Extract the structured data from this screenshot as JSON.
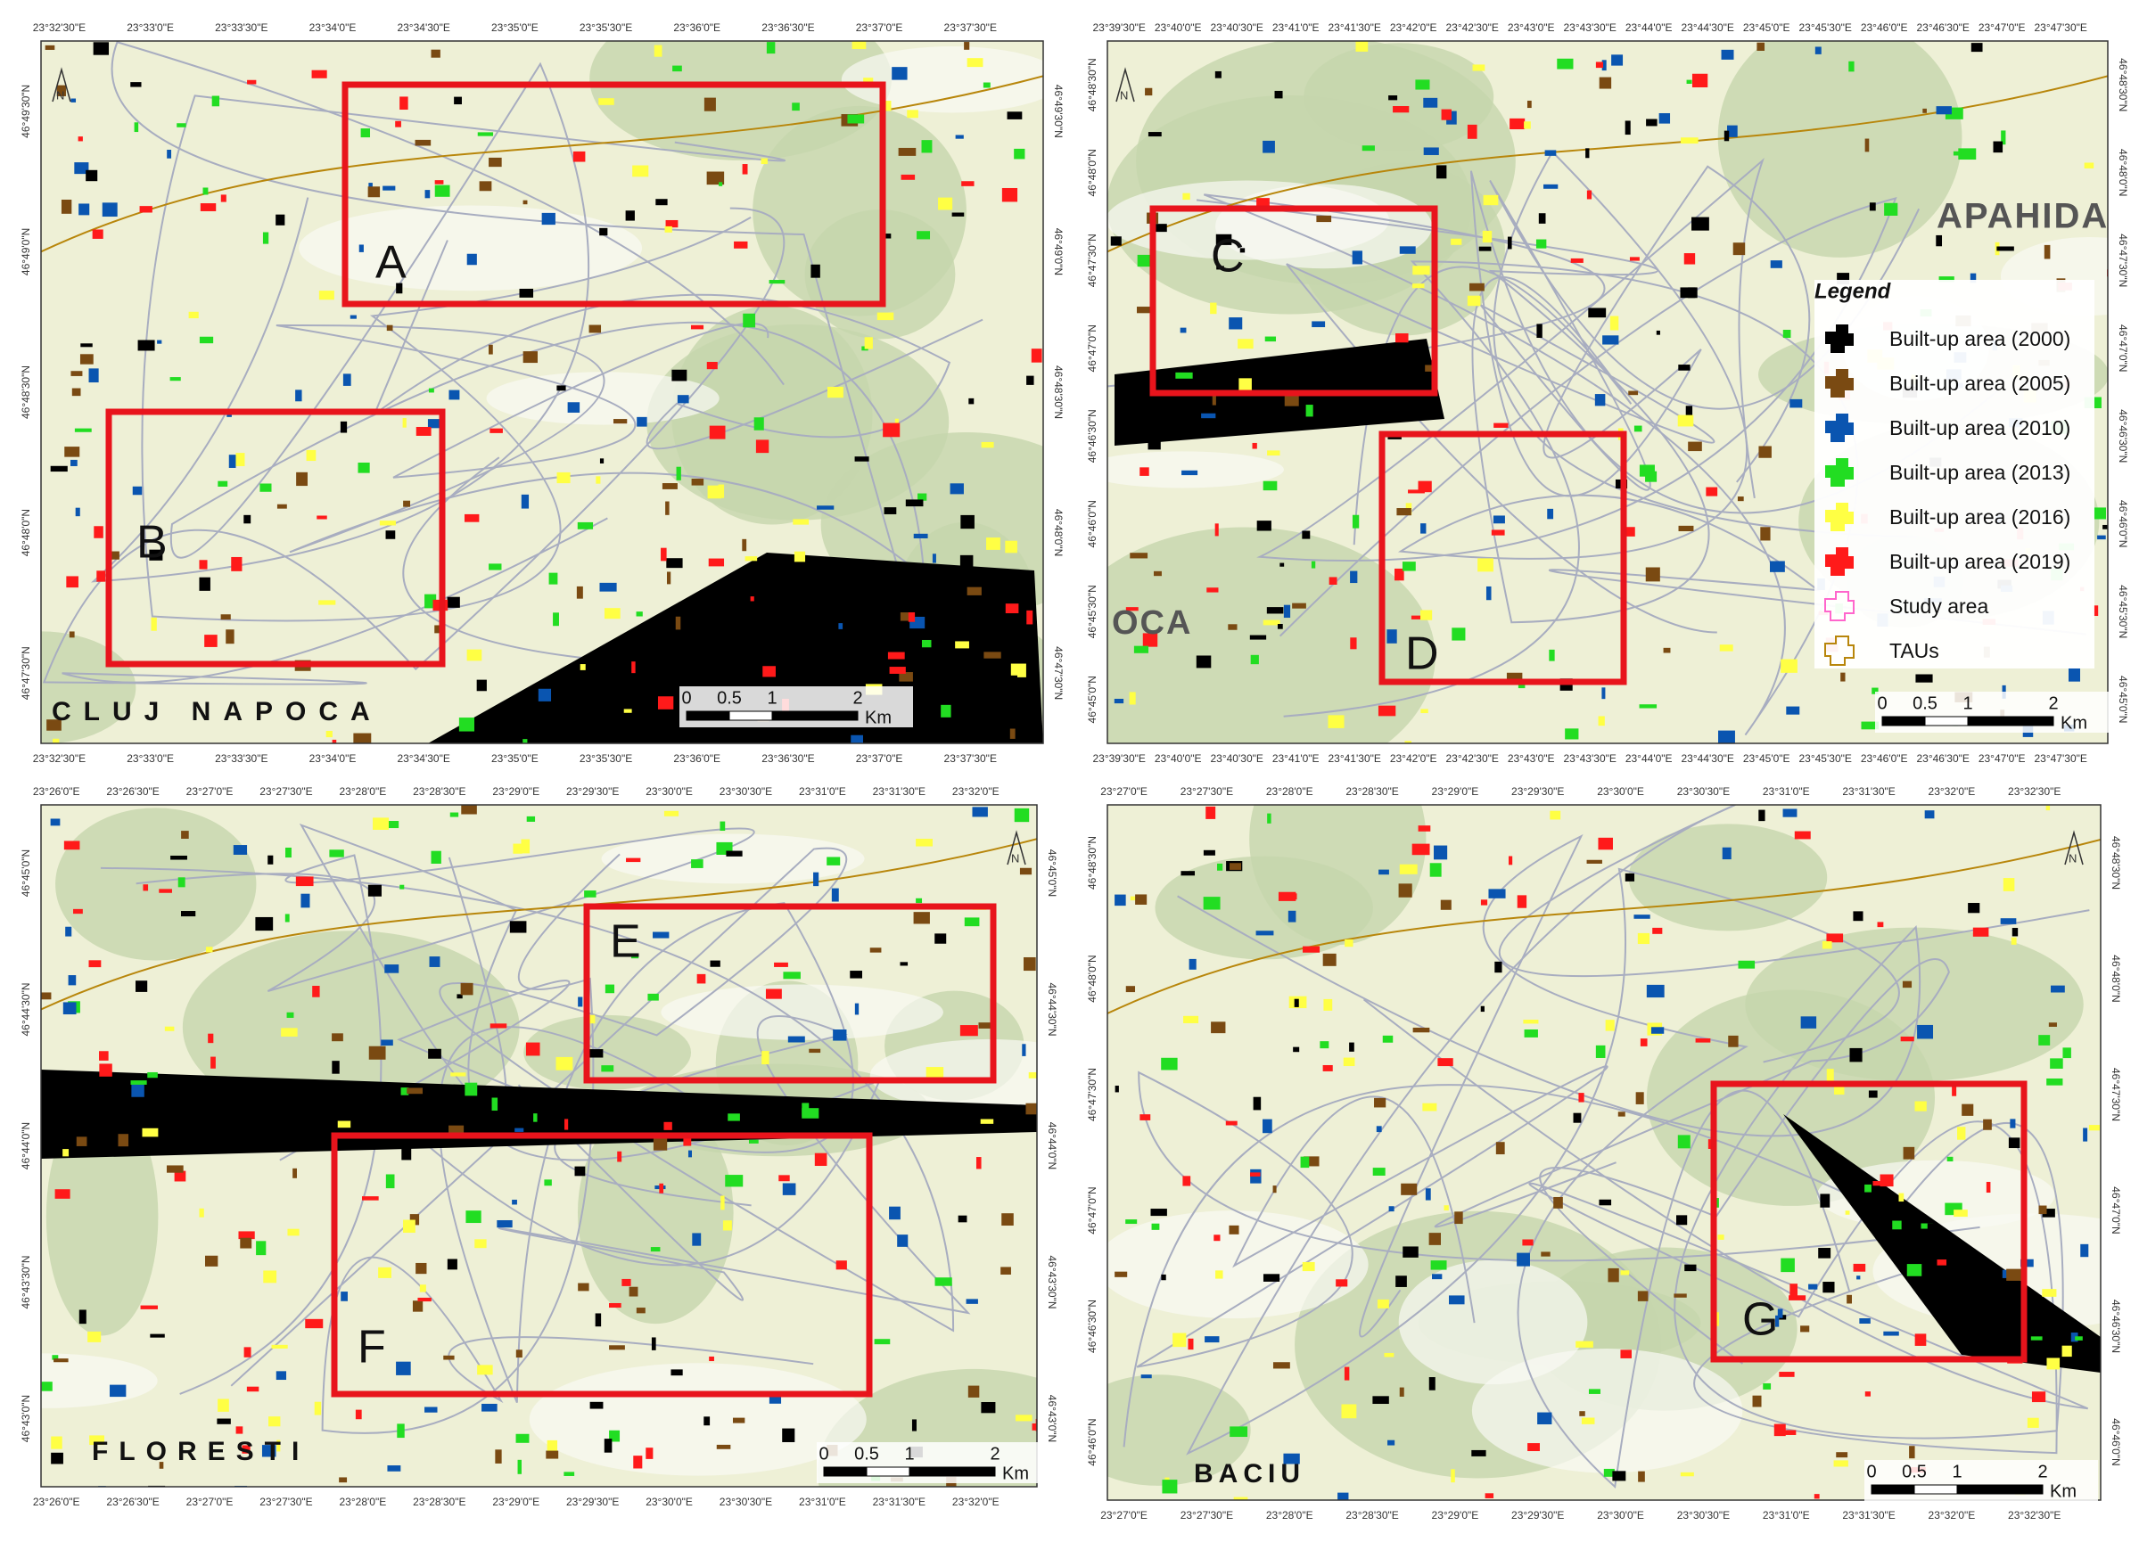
{
  "panels": [
    {
      "labels": [
        "A",
        "B"
      ],
      "places": [
        "CLUJ NAPOCA"
      ],
      "lon": [
        "23°32'30\"E",
        "23°33'0\"E",
        "23°33'30\"E",
        "23°34'0\"E",
        "23°34'30\"E",
        "23°35'0\"E",
        "23°35'30\"E",
        "23°36'0\"E",
        "23°36'30\"E",
        "23°37'0\"E",
        "23°37'30\"E"
      ],
      "lat": [
        "46°49'30\"N",
        "46°49'0\"N",
        "46°48'30\"N",
        "46°48'0\"N",
        "46°47'30\"N"
      ]
    },
    {
      "labels": [
        "C",
        "D"
      ],
      "places": [
        "APAHIDA",
        "OCA"
      ],
      "lon": [
        "23°39'30\"E",
        "23°40'0\"E",
        "23°40'30\"E",
        "23°41'0\"E",
        "23°41'30\"E",
        "23°42'0\"E",
        "23°42'30\"E",
        "23°43'0\"E",
        "23°43'30\"E",
        "23°44'0\"E",
        "23°44'30\"E",
        "23°45'0\"E",
        "23°45'30\"E",
        "23°46'0\"E",
        "23°46'30\"E",
        "23°47'0\"E",
        "23°47'30\"E"
      ],
      "lat": [
        "46°48'30\"N",
        "46°48'0\"N",
        "46°47'30\"N",
        "46°47'0\"N",
        "46°46'30\"N",
        "46°46'0\"N",
        "46°45'30\"N",
        "46°45'0\"N"
      ]
    },
    {
      "labels": [
        "E",
        "F"
      ],
      "places": [
        "FLORESTI"
      ],
      "lon": [
        "23°26'0\"E",
        "23°26'30\"E",
        "23°27'0\"E",
        "23°27'30\"E",
        "23°28'0\"E",
        "23°28'30\"E",
        "23°29'0\"E",
        "23°29'30\"E",
        "23°30'0\"E",
        "23°30'30\"E",
        "23°31'0\"E",
        "23°31'30\"E",
        "23°32'0\"E"
      ],
      "lat": [
        "46°45'0\"N",
        "46°44'30\"N",
        "46°44'0\"N",
        "46°43'30\"N",
        "46°43'0\"N"
      ]
    },
    {
      "labels": [
        "G"
      ],
      "places": [
        "BACIU"
      ],
      "lon": [
        "23°27'0\"E",
        "23°27'30\"E",
        "23°28'0\"E",
        "23°28'30\"E",
        "23°29'0\"E",
        "23°29'30\"E",
        "23°30'0\"E",
        "23°30'30\"E",
        "23°31'0\"E",
        "23°31'30\"E",
        "23°32'0\"E",
        "23°32'30\"E"
      ],
      "lat": [
        "46°48'30\"N",
        "46°48'0\"N",
        "46°47'30\"N",
        "46°47'0\"N",
        "46°46'30\"N",
        "46°46'0\"N"
      ]
    }
  ],
  "legend": {
    "title": "Legend",
    "items": [
      {
        "label": "Built-up area (2000)",
        "color": "#000000"
      },
      {
        "label": "Built-up area (2005)",
        "color": "#7a4a12"
      },
      {
        "label": "Built-up area (2010)",
        "color": "#0a55b0"
      },
      {
        "label": "Built-up area (2013)",
        "color": "#22dd22"
      },
      {
        "label": "Built-up area (2016)",
        "color": "#ffff44"
      },
      {
        "label": "Built-up area (2019)",
        "color": "#ff1a1a"
      },
      {
        "label": "Study area",
        "color": "#ff66cc"
      },
      {
        "label": "TAUs",
        "color": "#b8860b"
      }
    ]
  },
  "scale_bar": {
    "ticks": [
      "0",
      "0.5",
      "1",
      "2"
    ],
    "unit": "Km"
  },
  "north": "N"
}
